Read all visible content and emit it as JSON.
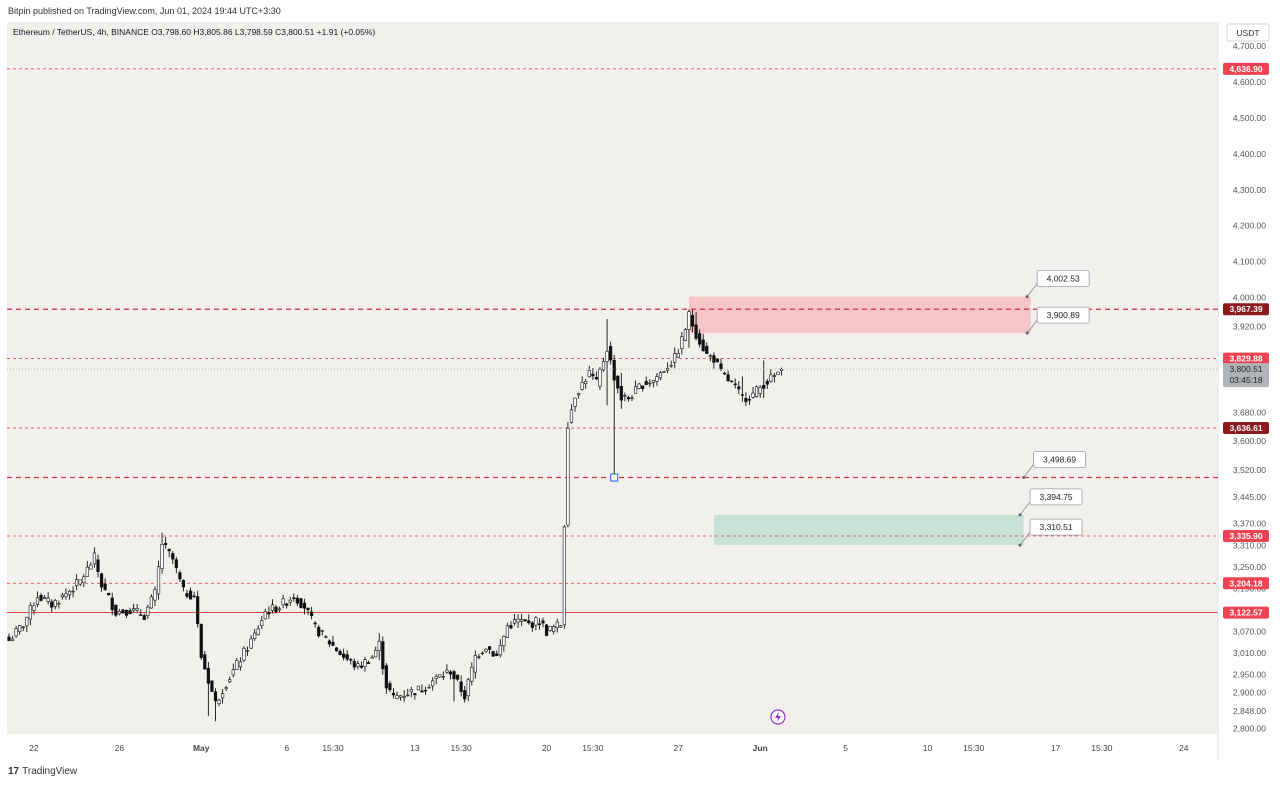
{
  "header": {
    "published": "Bitpin published on TradingView.com, Jun 01, 2024 19:44 UTC+3:30"
  },
  "legend": {
    "symbol": "Ethereum / TetherUS, 4h, BINANCE",
    "o": "O3,798.60",
    "h": "H3,805.86",
    "l": "L3,798.59",
    "c": "C3,800.51",
    "chg": "+1.91 (+0.05%)"
  },
  "currency": "USDT",
  "colors": {
    "background": "#f2f0ed",
    "line_red": "#d9333a",
    "label_red": "#ef4351",
    "label_darkred": "#8c1a1f",
    "label_gray": "#b0b3b8",
    "supply_zone": "#f6c5c7",
    "demand_zone": "#c8e2d8",
    "candle": "#111111",
    "event_icon": "#9b2fc9"
  },
  "footer": {
    "logo_glyph": "17",
    "logo_text": "TradingView"
  },
  "chart_data": {
    "type": "candlestick",
    "symbol": "Ethereum / TetherUS",
    "interval": "4h",
    "exchange": "BINANCE",
    "ylim": [
      2790,
      4720
    ],
    "yticks": [
      "4,700.00",
      "4,600.00",
      "4,500.00",
      "4,400.00",
      "4,300.00",
      "4,200.00",
      "4,100.00",
      "4,000.00",
      "3,920.00",
      "3,680.00",
      "3,600.00",
      "3,520.00",
      "3,445.00",
      "3,370.00",
      "3,310.00",
      "3,250.00",
      "3,190.00",
      "3,070.00",
      "3,010.00",
      "2,950.00",
      "2,900.00",
      "2,848.00",
      "2,800.00"
    ],
    "ytick_values": [
      4700,
      4600,
      4500,
      4400,
      4300,
      4200,
      4100,
      4000,
      3920,
      3680,
      3600,
      3520,
      3445,
      3370,
      3310,
      3250,
      3190,
      3070,
      3010,
      2950,
      2900,
      2848,
      2800
    ],
    "xticks": [
      "22",
      "26",
      "May",
      "6",
      "15:30",
      "13",
      "15:30",
      "20",
      "15:30",
      "27",
      "Jun",
      "5",
      "10",
      "15:30",
      "17",
      "15:30",
      "24"
    ],
    "xtick_bars": [
      7,
      31,
      54,
      78,
      91,
      114,
      127,
      151,
      164,
      188,
      211,
      235,
      258,
      271,
      294,
      307,
      330
    ],
    "last_bar_index": 217,
    "last_price": {
      "value": "3,800.51",
      "countdown": "03:45:18",
      "price": 3800.51
    },
    "horizontal_lines": [
      {
        "price": 4636.9,
        "label": "4,636.90",
        "style": "dashed-thin",
        "label_color": "red"
      },
      {
        "price": 3967.39,
        "label": "3,967.39",
        "style": "dashed-bold",
        "label_color": "darkred"
      },
      {
        "price": 3829.88,
        "label": "3,829.88",
        "style": "dashed-thin",
        "label_color": "red"
      },
      {
        "price": 3636.61,
        "label": "3,636.61",
        "style": "dashed-thin",
        "label_color": "darkred"
      },
      {
        "price": 3498.69,
        "label": "",
        "style": "dashed-bold",
        "label_color": "none"
      },
      {
        "price": 3335.9,
        "label": "3,335.90",
        "style": "dashed-thin",
        "label_color": "red"
      },
      {
        "price": 3204.18,
        "label": "3,204.18",
        "style": "dashed-thin",
        "label_color": "red"
      },
      {
        "price": 3122.57,
        "label": "3,122.57",
        "style": "solid-thin",
        "label_color": "red"
      }
    ],
    "zones": [
      {
        "kind": "supply",
        "top": 4002.53,
        "bottom": 3900.89,
        "from_bar": 191,
        "to_bar": 287
      },
      {
        "kind": "demand",
        "top": 3394.75,
        "bottom": 3310.51,
        "from_bar": 198,
        "to_bar": 285
      }
    ],
    "price_notes": [
      {
        "text": "4,002.53",
        "price": 4002.53,
        "anchor_bar": 286
      },
      {
        "text": "3,900.89",
        "price": 3900.89,
        "anchor_bar": 286
      },
      {
        "text": "3,498.69",
        "price": 3498.69,
        "anchor_bar": 285
      },
      {
        "text": "3,394.75",
        "price": 3394.75,
        "anchor_bar": 284
      },
      {
        "text": "3,310.51",
        "price": 3310.51,
        "anchor_bar": 284
      }
    ],
    "marker": {
      "bar": 170,
      "price": 3498.69
    },
    "event_bar": 216,
    "series_close_path": [
      [
        0,
        3045
      ],
      [
        4,
        3090
      ],
      [
        8,
        3170
      ],
      [
        12,
        3145
      ],
      [
        16,
        3175
      ],
      [
        20,
        3210
      ],
      [
        24,
        3275
      ],
      [
        26,
        3200
      ],
      [
        30,
        3125
      ],
      [
        34,
        3130
      ],
      [
        38,
        3115
      ],
      [
        41,
        3175
      ],
      [
        43,
        3315
      ],
      [
        46,
        3270
      ],
      [
        49,
        3180
      ],
      [
        52,
        3170
      ],
      [
        54,
        3000
      ],
      [
        56,
        2935
      ],
      [
        58,
        2870
      ],
      [
        60,
        2910
      ],
      [
        63,
        2960
      ],
      [
        66,
        3010
      ],
      [
        69,
        3060
      ],
      [
        72,
        3125
      ],
      [
        76,
        3140
      ],
      [
        80,
        3170
      ],
      [
        83,
        3140
      ],
      [
        86,
        3080
      ],
      [
        90,
        3040
      ],
      [
        94,
        3000
      ],
      [
        98,
        2970
      ],
      [
        102,
        3000
      ],
      [
        104,
        3035
      ],
      [
        106,
        2920
      ],
      [
        108,
        2885
      ],
      [
        112,
        2900
      ],
      [
        116,
        2910
      ],
      [
        120,
        2940
      ],
      [
        124,
        2960
      ],
      [
        126,
        2925
      ],
      [
        128,
        2890
      ],
      [
        131,
        3000
      ],
      [
        134,
        3030
      ],
      [
        137,
        3000
      ],
      [
        140,
        3085
      ],
      [
        143,
        3100
      ],
      [
        146,
        3090
      ],
      [
        149,
        3100
      ],
      [
        151,
        3070
      ],
      [
        153,
        3080
      ],
      [
        155,
        3090
      ],
      [
        157,
        3650
      ],
      [
        159,
        3730
      ],
      [
        161,
        3760
      ],
      [
        163,
        3790
      ],
      [
        165,
        3760
      ],
      [
        168,
        3860
      ],
      [
        170,
        3780
      ],
      [
        172,
        3720
      ],
      [
        174,
        3720
      ],
      [
        176,
        3740
      ],
      [
        178,
        3760
      ],
      [
        181,
        3770
      ],
      [
        184,
        3800
      ],
      [
        187,
        3830
      ],
      [
        189,
        3880
      ],
      [
        191,
        3950
      ],
      [
        193,
        3900
      ],
      [
        196,
        3840
      ],
      [
        198,
        3830
      ],
      [
        200,
        3790
      ],
      [
        203,
        3760
      ],
      [
        206,
        3720
      ],
      [
        209,
        3730
      ],
      [
        212,
        3760
      ],
      [
        215,
        3780
      ],
      [
        217,
        3800.51
      ]
    ],
    "spikes": [
      [
        43,
        3345,
        3250
      ],
      [
        56,
        2985,
        2835
      ],
      [
        58,
        2880,
        2820
      ],
      [
        104,
        3065,
        2990
      ],
      [
        125,
        2945,
        2875
      ],
      [
        168,
        3940,
        3700
      ],
      [
        170,
        3840,
        3498.69
      ],
      [
        172,
        3790,
        3690
      ],
      [
        191,
        3960,
        3860
      ],
      [
        193,
        3960,
        3880
      ],
      [
        206,
        3780,
        3710
      ],
      [
        212,
        3825,
        3720
      ]
    ],
    "candle_style": {
      "color": "#111111",
      "up_fill": "#ffffff",
      "down_fill": "#111111"
    }
  }
}
